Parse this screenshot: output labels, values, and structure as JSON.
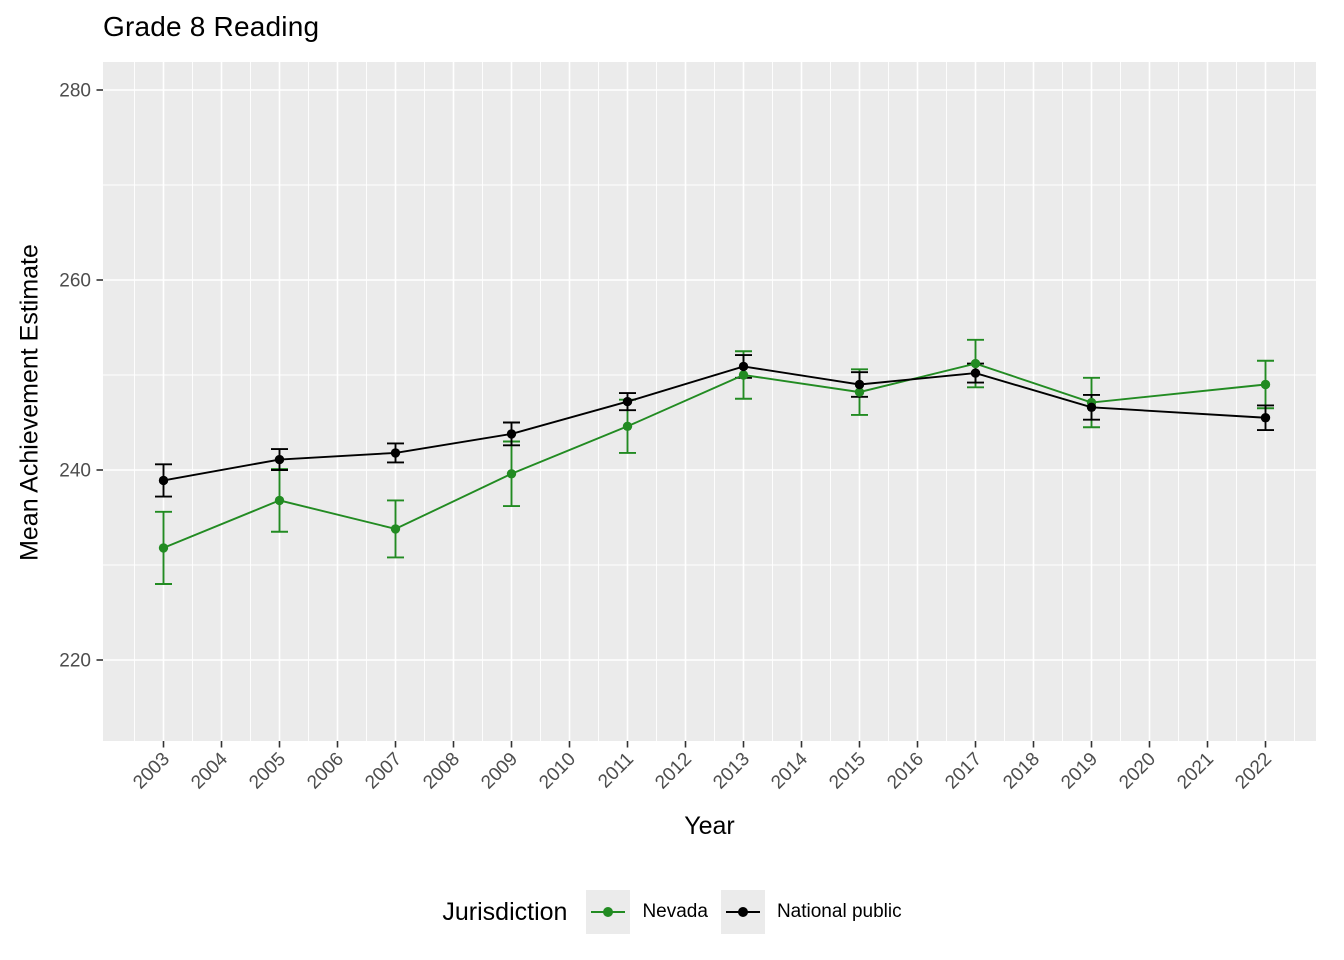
{
  "title": "Grade 8 Reading",
  "legend": {
    "title": "Jurisdiction",
    "items": [
      "Nevada",
      "National public"
    ]
  },
  "colors": {
    "panel_background": "#EBEBEB",
    "gridline": "#FFFFFF",
    "tick_mark": "#333333",
    "tick_label": "#4D4D4D",
    "nevada": "#228B22",
    "national_public": "#000000"
  },
  "chart_data": {
    "type": "line",
    "title": "Grade 8 Reading",
    "xlabel": "Year",
    "ylabel": "Mean Achievement Estimate",
    "legend_title": "Jurisdiction",
    "legend_position": "bottom",
    "grid": true,
    "error_bars": true,
    "x_ticks": [
      2003,
      2004,
      2005,
      2006,
      2007,
      2008,
      2009,
      2010,
      2011,
      2012,
      2013,
      2014,
      2015,
      2016,
      2017,
      2018,
      2019,
      2020,
      2021,
      2022
    ],
    "y_ticks": [
      220,
      240,
      260,
      280
    ],
    "xlim": [
      2002.0,
      2022.9
    ],
    "ylim": [
      211.5,
      283.0
    ],
    "x": [
      2003,
      2005,
      2007,
      2009,
      2011,
      2013,
      2015,
      2017,
      2019,
      2022
    ],
    "series": [
      {
        "name": "Nevada",
        "color": "#228B22",
        "values": [
          231.8,
          236.8,
          233.8,
          239.6,
          244.6,
          250.0,
          248.2,
          251.2,
          247.1,
          249.0
        ],
        "ci": [
          3.8,
          3.3,
          3.0,
          3.4,
          2.8,
          2.5,
          2.4,
          2.5,
          2.6,
          2.5
        ]
      },
      {
        "name": "National public",
        "color": "#000000",
        "values": [
          238.9,
          241.1,
          241.8,
          243.8,
          247.2,
          250.9,
          249.0,
          250.2,
          246.6,
          245.5
        ],
        "ci": [
          1.7,
          1.1,
          1.0,
          1.2,
          0.9,
          1.2,
          1.3,
          1.0,
          1.3,
          1.3
        ]
      }
    ]
  }
}
